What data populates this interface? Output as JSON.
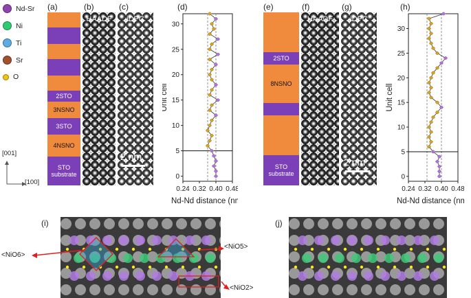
{
  "panel_labels": {
    "a": "(a)",
    "b": "(b)",
    "c": "(c)",
    "d": "(d)",
    "e": "(e)",
    "f": "(f)",
    "g": "(g)",
    "h": "(h)",
    "i": "(i)",
    "j": "(j)"
  },
  "legend": [
    {
      "label": "Nd-Sr",
      "color": "#8e44ad"
    },
    {
      "label": "Ni",
      "color": "#2ecc71"
    },
    {
      "label": "Ti",
      "color": "#5dade2"
    },
    {
      "label": "Sr",
      "color": "#a0522d"
    },
    {
      "label": "O",
      "color": "#f1c40f"
    }
  ],
  "axes_label": {
    "vertical": "[001]",
    "horizontal": "[100]"
  },
  "stack_left": {
    "labels": {
      "sto2": "2STO",
      "nsno3": "3NSNO",
      "sto3": "3STO",
      "nsno4": "4NSNO",
      "substrate": "STO\nsubstrate"
    }
  },
  "stack_right": {
    "labels": {
      "sto2": "2STO",
      "nsno8": "8NSNO",
      "substrate": "STO\nsubstrate"
    }
  },
  "image_titles": {
    "haadf": "HAADF",
    "dpc": "iDPC"
  },
  "scale_bar": "2 nm",
  "annotations": {
    "nio6": "<NiO6>",
    "nio5": "<NiO5>",
    "nio2": "<NiO2>"
  },
  "colors": {
    "orange": "#f08a3c",
    "purple": "#7b3fb8",
    "point_gold": "#d9a520",
    "point_violet": "#b070f0",
    "line": "#333333"
  },
  "chart_data": [
    {
      "type": "scatter",
      "panel": "(d)",
      "xlabel": "Nd-Nd distance (nm)",
      "ylabel": "Unit cell",
      "xlim": [
        0.24,
        0.48
      ],
      "ylim": [
        -1,
        32
      ],
      "xticks": [
        0.24,
        0.32,
        0.4,
        0.48
      ],
      "xtick_labels": [
        "0.24",
        "0.32",
        "0.40",
        "0.48"
      ],
      "yticks": [
        0,
        5,
        10,
        15,
        20,
        25,
        30
      ],
      "reference_lines": [
        0.36,
        0.4
      ],
      "hline": 5,
      "points": [
        [
          0.4,
          0
        ],
        [
          0.4,
          1
        ],
        [
          0.39,
          2
        ],
        [
          0.4,
          3
        ],
        [
          0.39,
          4
        ],
        [
          0.38,
          5
        ],
        [
          0.36,
          6
        ],
        [
          0.37,
          7
        ],
        [
          0.38,
          8
        ],
        [
          0.36,
          9
        ],
        [
          0.37,
          10
        ],
        [
          0.38,
          11
        ],
        [
          0.4,
          12
        ],
        [
          0.37,
          13
        ],
        [
          0.38,
          14
        ],
        [
          0.41,
          15
        ],
        [
          0.37,
          16
        ],
        [
          0.38,
          17
        ],
        [
          0.4,
          18
        ],
        [
          0.38,
          19
        ],
        [
          0.37,
          20
        ],
        [
          0.38,
          21
        ],
        [
          0.4,
          22
        ],
        [
          0.37,
          23
        ],
        [
          0.41,
          24
        ],
        [
          0.37,
          25
        ],
        [
          0.38,
          26
        ],
        [
          0.41,
          27
        ],
        [
          0.37,
          28
        ],
        [
          0.39,
          29
        ],
        [
          0.38,
          30
        ],
        [
          0.4,
          31
        ],
        [
          0.37,
          32
        ]
      ]
    },
    {
      "type": "scatter",
      "panel": "(h)",
      "xlabel": "Nd-Nd distance (nm)",
      "ylabel": "Unit cell",
      "xlim": [
        0.24,
        0.48
      ],
      "ylim": [
        -1,
        33
      ],
      "xticks": [
        0.24,
        0.32,
        0.4,
        0.48
      ],
      "xtick_labels": [
        "0.24",
        "0.32",
        "0.40",
        "0.48"
      ],
      "yticks": [
        0,
        5,
        10,
        15,
        20,
        25,
        30
      ],
      "reference_lines": [
        0.33,
        0.4
      ],
      "hline": 5,
      "points": [
        [
          0.39,
          0
        ],
        [
          0.39,
          1
        ],
        [
          0.39,
          2
        ],
        [
          0.38,
          3
        ],
        [
          0.39,
          4
        ],
        [
          0.36,
          5
        ],
        [
          0.34,
          6
        ],
        [
          0.35,
          7
        ],
        [
          0.34,
          8
        ],
        [
          0.35,
          9
        ],
        [
          0.34,
          10
        ],
        [
          0.35,
          11
        ],
        [
          0.36,
          12
        ],
        [
          0.38,
          13
        ],
        [
          0.4,
          14
        ],
        [
          0.38,
          15
        ],
        [
          0.35,
          16
        ],
        [
          0.34,
          17
        ],
        [
          0.35,
          18
        ],
        [
          0.34,
          19
        ],
        [
          0.35,
          20
        ],
        [
          0.36,
          21
        ],
        [
          0.38,
          22
        ],
        [
          0.4,
          23
        ],
        [
          0.42,
          24
        ],
        [
          0.38,
          25
        ],
        [
          0.36,
          26
        ],
        [
          0.35,
          27
        ],
        [
          0.34,
          28
        ],
        [
          0.35,
          29
        ],
        [
          0.34,
          30
        ],
        [
          0.35,
          31
        ],
        [
          0.34,
          32
        ],
        [
          0.41,
          33
        ]
      ]
    }
  ]
}
